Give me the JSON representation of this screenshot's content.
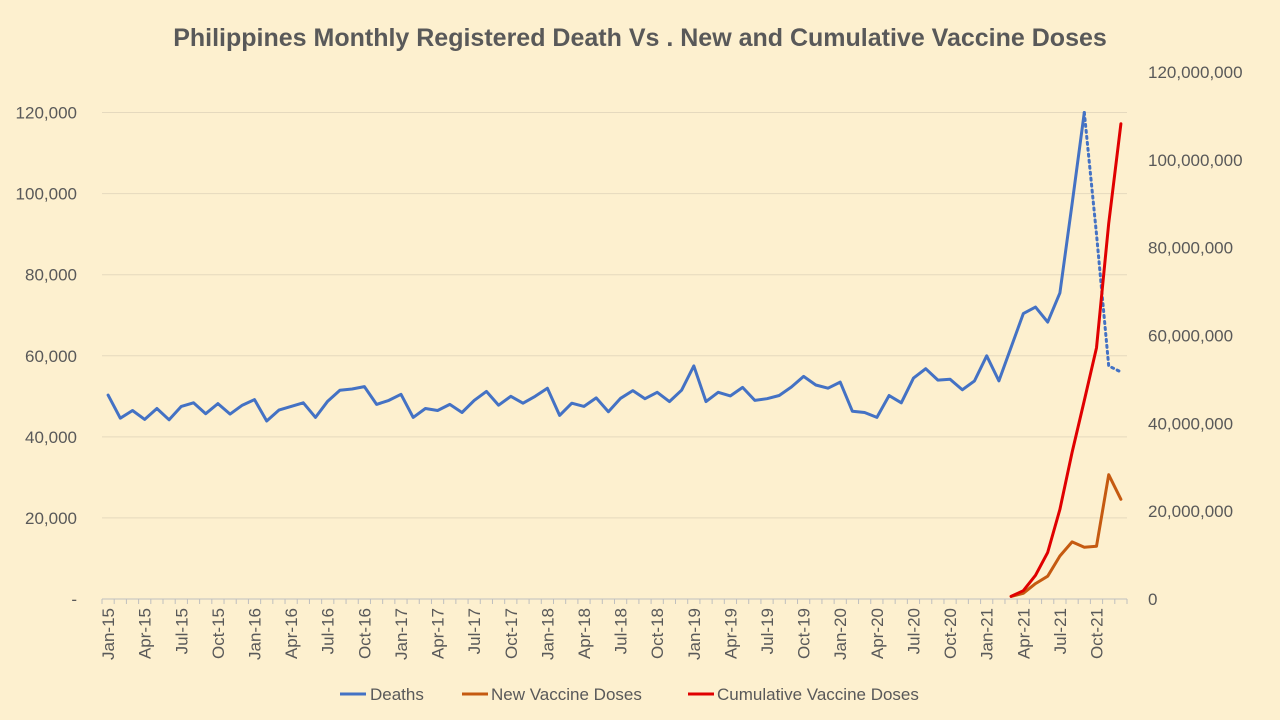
{
  "chart_data": {
    "type": "line",
    "title": "Philippines Monthly Registered Death Vs . New and Cumulative Vaccine Doses",
    "xlabel": "",
    "ylabel": "",
    "y_left": {
      "range": [
        0,
        130000
      ],
      "ticks": [
        0,
        20000,
        40000,
        60000,
        80000,
        100000,
        120000
      ],
      "tick_labels": [
        "-",
        "20,000",
        "40,000",
        "60,000",
        "80,000",
        "100,000",
        "120,000"
      ]
    },
    "y_right": {
      "range": [
        0,
        120000000
      ],
      "ticks": [
        0,
        20000000,
        40000000,
        60000000,
        80000000,
        100000000,
        120000000
      ],
      "tick_labels": [
        "0",
        "20,000,000",
        "40,000,000",
        "60,000,000",
        "80,000,000",
        "100,000,000",
        "120,000,000"
      ]
    },
    "x": [
      "Jan-15",
      "Feb-15",
      "Mar-15",
      "Apr-15",
      "May-15",
      "Jun-15",
      "Jul-15",
      "Aug-15",
      "Sep-15",
      "Oct-15",
      "Nov-15",
      "Dec-15",
      "Jan-16",
      "Feb-16",
      "Mar-16",
      "Apr-16",
      "May-16",
      "Jun-16",
      "Jul-16",
      "Aug-16",
      "Sep-16",
      "Oct-16",
      "Nov-16",
      "Dec-16",
      "Jan-17",
      "Feb-17",
      "Mar-17",
      "Apr-17",
      "May-17",
      "Jun-17",
      "Jul-17",
      "Aug-17",
      "Sep-17",
      "Oct-17",
      "Nov-17",
      "Dec-17",
      "Jan-18",
      "Feb-18",
      "Mar-18",
      "Apr-18",
      "May-18",
      "Jun-18",
      "Jul-18",
      "Aug-18",
      "Sep-18",
      "Oct-18",
      "Nov-18",
      "Dec-18",
      "Jan-19",
      "Feb-19",
      "Mar-19",
      "Apr-19",
      "May-19",
      "Jun-19",
      "Jul-19",
      "Aug-19",
      "Sep-19",
      "Oct-19",
      "Nov-19",
      "Dec-19",
      "Jan-20",
      "Feb-20",
      "Mar-20",
      "Apr-20",
      "May-20",
      "Jun-20",
      "Jul-20",
      "Aug-20",
      "Sep-20",
      "Oct-20",
      "Nov-20",
      "Dec-20",
      "Jan-21",
      "Feb-21",
      "Mar-21",
      "Apr-21",
      "May-21",
      "Jun-21",
      "Jul-21",
      "Aug-21",
      "Sep-21",
      "Oct-21",
      "Nov-21",
      "Dec-21"
    ],
    "x_tick_labels": [
      "Jan-15",
      "Apr-15",
      "Jul-15",
      "Oct-15",
      "Jan-16",
      "Apr-16",
      "Jul-16",
      "Oct-16",
      "Jan-17",
      "Apr-17",
      "Jul-17",
      "Oct-17",
      "Jan-18",
      "Apr-18",
      "Jul-18",
      "Oct-18",
      "Jan-19",
      "Apr-19",
      "Jul-19",
      "Oct-19",
      "Jan-20",
      "Apr-20",
      "Jul-20",
      "Oct-20",
      "Jan-21",
      "Apr-21",
      "Jul-21",
      "Oct-21"
    ],
    "series": [
      {
        "name": "Deaths",
        "axis": "left",
        "color": "#4472C4",
        "values": [
          50300,
          44600,
          46500,
          44300,
          47000,
          44200,
          47500,
          48400,
          45700,
          48200,
          45600,
          47800,
          49200,
          43900,
          46600,
          47500,
          48400,
          44800,
          48800,
          51500,
          51800,
          52400,
          48000,
          49000,
          50500,
          44800,
          47000,
          46500,
          48000,
          46000,
          49000,
          51200,
          47800,
          50000,
          48300,
          50000,
          52000,
          45300,
          48300,
          47500,
          49600,
          46200,
          49500,
          51400,
          49400,
          51000,
          48700,
          51500,
          57500,
          48700,
          51000,
          50100,
          52200,
          49000,
          49400,
          50200,
          52300,
          54900,
          52800,
          52000,
          53500,
          46300,
          46000,
          44800,
          50200,
          48400,
          54500,
          56800,
          54000,
          54200,
          51600,
          53800,
          60000,
          53800,
          62100,
          70400,
          72000,
          68300,
          75500,
          97500,
          120000,
          null,
          null,
          null
        ],
        "projected_values": [
          null,
          null,
          null,
          null,
          null,
          null,
          null,
          null,
          null,
          null,
          null,
          null,
          null,
          null,
          null,
          null,
          null,
          null,
          null,
          null,
          null,
          null,
          null,
          null,
          null,
          null,
          null,
          null,
          null,
          null,
          null,
          null,
          null,
          null,
          null,
          null,
          null,
          null,
          null,
          null,
          null,
          null,
          null,
          null,
          null,
          null,
          null,
          null,
          null,
          null,
          null,
          null,
          null,
          null,
          null,
          null,
          null,
          null,
          null,
          null,
          null,
          null,
          null,
          null,
          null,
          null,
          null,
          null,
          null,
          null,
          null,
          null,
          null,
          null,
          null,
          null,
          null,
          null,
          null,
          null,
          120000,
          90000,
          57500,
          56000
        ]
      },
      {
        "name": "New Vaccine Doses",
        "axis": "right",
        "color": "#C55A11",
        "values": [
          null,
          null,
          null,
          null,
          null,
          null,
          null,
          null,
          null,
          null,
          null,
          null,
          null,
          null,
          null,
          null,
          null,
          null,
          null,
          null,
          null,
          null,
          null,
          null,
          null,
          null,
          null,
          null,
          null,
          null,
          null,
          null,
          null,
          null,
          null,
          null,
          null,
          null,
          null,
          null,
          null,
          null,
          null,
          null,
          null,
          null,
          null,
          null,
          null,
          null,
          null,
          null,
          null,
          null,
          null,
          null,
          null,
          null,
          null,
          null,
          null,
          null,
          null,
          null,
          null,
          null,
          null,
          null,
          null,
          null,
          null,
          null,
          null,
          null,
          600000,
          1300000,
          3500000,
          5200000,
          9800000,
          13000000,
          11800000,
          12000000,
          28300000,
          22700000
        ]
      },
      {
        "name": "Cumulative Vaccine Doses",
        "axis": "right",
        "color": "#E00000",
        "values": [
          null,
          null,
          null,
          null,
          null,
          null,
          null,
          null,
          null,
          null,
          null,
          null,
          null,
          null,
          null,
          null,
          null,
          null,
          null,
          null,
          null,
          null,
          null,
          null,
          null,
          null,
          null,
          null,
          null,
          null,
          null,
          null,
          null,
          null,
          null,
          null,
          null,
          null,
          null,
          null,
          null,
          null,
          null,
          null,
          null,
          null,
          null,
          null,
          null,
          null,
          null,
          null,
          null,
          null,
          null,
          null,
          null,
          null,
          null,
          null,
          null,
          null,
          null,
          null,
          null,
          null,
          null,
          null,
          null,
          null,
          null,
          null,
          null,
          null,
          600000,
          1900000,
          5400000,
          10600000,
          20400000,
          33400000,
          45200000,
          57200000,
          85500000,
          108200000
        ]
      }
    ],
    "legend": {
      "position": "bottom",
      "entries": [
        "Deaths",
        "New Vaccine Doses",
        "Cumulative Vaccine Doses"
      ]
    },
    "grid": true,
    "colors": {
      "background": "#FDF0CF",
      "gridline": "#E5D9BE",
      "axis": "#BFBFBF",
      "text": "#595959"
    }
  }
}
